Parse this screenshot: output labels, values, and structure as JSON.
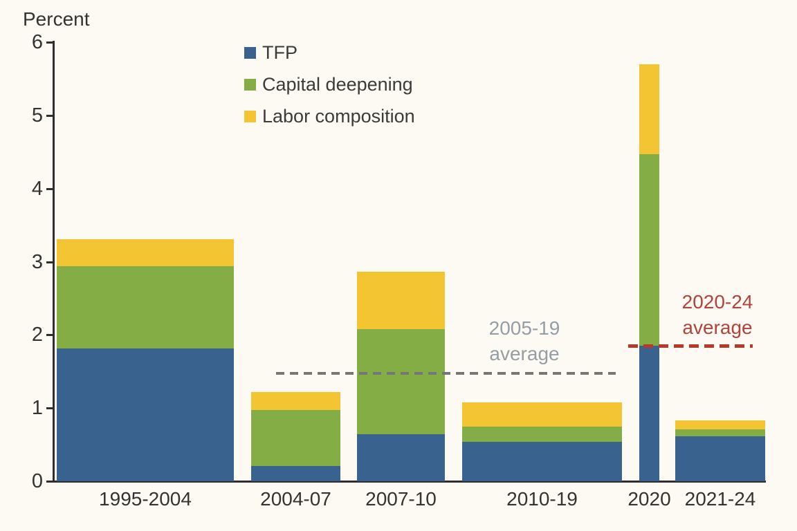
{
  "axis": {
    "y_title": "Percent"
  },
  "chart_data": {
    "type": "bar",
    "stacked": true,
    "categories": [
      "1995-2004",
      "2004-07",
      "2007-10",
      "2010-19",
      "2020",
      "2021-24"
    ],
    "series": [
      {
        "name": "TFP",
        "color": "#3a628f",
        "values": [
          1.81,
          0.21,
          0.64,
          0.54,
          1.85,
          0.61
        ]
      },
      {
        "name": "Capital deepening",
        "color": "#84ad45",
        "values": [
          1.13,
          0.76,
          1.44,
          0.21,
          2.62,
          0.1
        ]
      },
      {
        "name": "Labor composition",
        "color": "#f3c532",
        "values": [
          0.37,
          0.25,
          0.78,
          0.33,
          1.23,
          0.12
        ]
      }
    ],
    "totals": [
      3.31,
      1.22,
      2.86,
      1.08,
      5.7,
      0.83
    ],
    "ylabel": "Percent",
    "xlabel": "",
    "ylim": [
      0,
      6
    ],
    "yticks": [
      0,
      1,
      2,
      3,
      4,
      5,
      6
    ],
    "grid": false,
    "legend_position": "inside-top-left",
    "ref_lines": [
      {
        "label": "2005-19 average",
        "label_lines": [
          "2005-19",
          "average"
        ],
        "value": 1.47,
        "line_color": "#767676",
        "text_color": "#959da6"
      },
      {
        "label": "2020-24 average",
        "label_lines": [
          "2020-24",
          "average"
        ],
        "value": 1.85,
        "line_color": "#b9382c",
        "text_color": "#b0443a"
      }
    ]
  }
}
